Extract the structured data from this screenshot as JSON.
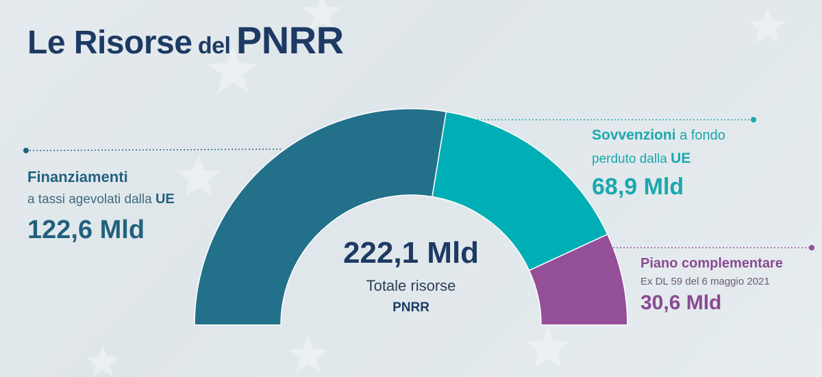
{
  "title": {
    "part1": "Le Risorse",
    "part2": "del",
    "part3": "PNRR"
  },
  "colors": {
    "finanziamenti": "#22708a",
    "sovvenzioni": "#00afb5",
    "piano": "#944f99",
    "title": "#1d3a63"
  },
  "chart_data": {
    "type": "pie",
    "style": "half-donut",
    "title": "Le Risorse del PNRR",
    "slices": [
      {
        "label_bold": "Finanziamenti",
        "label_text": "a tassi agevolati dalla",
        "label_suffix": "UE",
        "value": 122.6,
        "value_label": "122,6 Mld",
        "color": "#22708a"
      },
      {
        "label_bold": "Sovvenzioni",
        "label_text": "a fondo perduto dalla",
        "label_suffix": "UE",
        "value": 68.9,
        "value_label": "68,9 Mld",
        "color": "#00afb5"
      },
      {
        "label_bold": "Piano complementare",
        "label_text": "Ex DL 59 del 6 maggio 2021",
        "label_suffix": "",
        "value": 30.6,
        "value_label": "30,6 Mld",
        "color": "#944f99"
      }
    ],
    "total": {
      "value": 222.1,
      "value_label": "222,1 Mld",
      "label_line1": "Totale risorse",
      "label_line2": "PNRR"
    }
  },
  "labels": {
    "fin": {
      "line1": "Finanziamenti",
      "line2a": "a tassi agevolati dalla ",
      "line2b": "UE",
      "val": "122,6 Mld"
    },
    "sov": {
      "line1a": "Sovvenzioni",
      "line1b": " a fondo",
      "line2a": "perduto dalla ",
      "line2b": "UE",
      "val": "68,9 Mld"
    },
    "pc": {
      "line1": "Piano complementare",
      "line2": "Ex DL 59 del 6 maggio 2021",
      "val": "30,6 Mld"
    }
  },
  "background": {
    "motif": "star-icon"
  }
}
